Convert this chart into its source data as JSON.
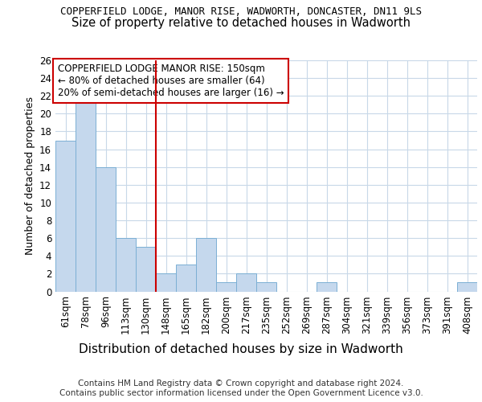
{
  "title1": "COPPERFIELD LODGE, MANOR RISE, WADWORTH, DONCASTER, DN11 9LS",
  "title2": "Size of property relative to detached houses in Wadworth",
  "xlabel": "Distribution of detached houses by size in Wadworth",
  "ylabel": "Number of detached properties",
  "categories": [
    "61sqm",
    "78sqm",
    "96sqm",
    "113sqm",
    "130sqm",
    "148sqm",
    "165sqm",
    "182sqm",
    "200sqm",
    "217sqm",
    "235sqm",
    "252sqm",
    "269sqm",
    "287sqm",
    "304sqm",
    "321sqm",
    "339sqm",
    "356sqm",
    "373sqm",
    "391sqm",
    "408sqm"
  ],
  "values": [
    17,
    22,
    14,
    6,
    5,
    2,
    3,
    6,
    1,
    2,
    1,
    0,
    0,
    1,
    0,
    0,
    0,
    0,
    0,
    0,
    1
  ],
  "bar_color": "#c5d8ed",
  "bar_edge_color": "#7bafd4",
  "vline_x": 5.0,
  "vline_color": "#cc0000",
  "annotation_title": "COPPERFIELD LODGE MANOR RISE: 150sqm",
  "annotation_line1": "← 80% of detached houses are smaller (64)",
  "annotation_line2": "20% of semi-detached houses are larger (16) →",
  "annotation_box_color": "#ffffff",
  "annotation_box_edge": "#cc0000",
  "ylim": [
    0,
    26
  ],
  "yticks": [
    0,
    2,
    4,
    6,
    8,
    10,
    12,
    14,
    16,
    18,
    20,
    22,
    24,
    26
  ],
  "footer": "Contains HM Land Registry data © Crown copyright and database right 2024.\nContains public sector information licensed under the Open Government Licence v3.0.",
  "bg_color": "#ffffff",
  "grid_color": "#c8d8e8",
  "title1_fontsize": 9.0,
  "title2_fontsize": 10.5,
  "ylabel_fontsize": 9.0,
  "xlabel_fontsize": 11.0,
  "tick_fontsize": 8.5,
  "footer_fontsize": 7.5,
  "annotation_fontsize": 8.5
}
